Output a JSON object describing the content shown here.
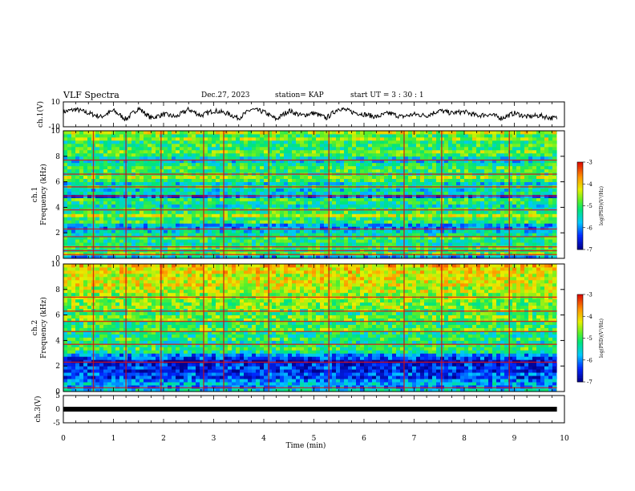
{
  "header": {
    "title": "VLF Spectra",
    "date": "Dec.27, 2023",
    "station": "station= KAP",
    "start": "start  UT =   3 : 30 : 1"
  },
  "chart_data": [
    {
      "type": "line",
      "panel": "ch1_waveform",
      "ylabel": "ch.1(V)",
      "ylim": [
        -10,
        10
      ],
      "yticks": [
        "10",
        "-10"
      ],
      "x_minutes": [
        0,
        0.25,
        0.5,
        0.75,
        1,
        1.25,
        1.5,
        1.75,
        2,
        2.25,
        2.5,
        2.75,
        3,
        3.25,
        3.5,
        3.75,
        4,
        4.25,
        4.5,
        4.75,
        5,
        5.25,
        5.5,
        5.75,
        6,
        6.25,
        6.5,
        6.75,
        7,
        7.25,
        7.5,
        7.75,
        8,
        8.25,
        8.5,
        8.75,
        9,
        9.25,
        9.5,
        9.75,
        9.85
      ],
      "values": [
        2,
        4,
        1,
        -2,
        3,
        -4,
        5,
        -3,
        0,
        -2,
        4,
        -1,
        3,
        1,
        -3,
        4,
        2,
        -4,
        3,
        -1,
        1,
        -3,
        5,
        2,
        0,
        -2,
        1,
        -2,
        0,
        -1,
        3,
        1,
        2,
        -1,
        0,
        -3,
        1,
        -2,
        -1,
        -3,
        -3
      ]
    },
    {
      "type": "heatmap",
      "panel": "ch1_spectrogram",
      "ylabel": "ch.1 Frequency (kHz)",
      "ylim": [
        0,
        10
      ],
      "yticks": [
        "0",
        "2",
        "4",
        "6",
        "8",
        "10"
      ],
      "colorbar": {
        "label": "log(PSD)(V²/Hz)",
        "range": [
          -7,
          -3
        ],
        "ticks": [
          "-3",
          "-4",
          "-5",
          "-6",
          "-7"
        ]
      },
      "band_levels_by_khz": [
        -5.8,
        -4.8,
        -5.2,
        -5.0,
        -5.3,
        -5.2,
        -5.0,
        -5.4,
        -5.6,
        -6.0,
        -5.8,
        -5.0,
        -5.1,
        -4.5,
        -5.0,
        -5.2,
        -5.5,
        -5.2,
        -5.0,
        -6.2,
        -5.4,
        -5.6,
        -5.2,
        -5.6,
        -5.0,
        -4.6,
        -5.2,
        -5.0,
        -5.0,
        -5.2,
        -5.6,
        -5.5,
        -5.0,
        -4.7,
        -5.1,
        -5.0,
        -5.2,
        -4.6,
        -5.0,
        -4.4
      ],
      "red_lines_khz": [
        0.3,
        0.6,
        0.9,
        1.7,
        2.3,
        3.8,
        4.9,
        5.6,
        6.6,
        7.7
      ],
      "spike_minutes": [
        0.6,
        1.25,
        1.95,
        2.8,
        3.2,
        4.1,
        5.3,
        6.8,
        7.55,
        8.9
      ]
    },
    {
      "type": "heatmap",
      "panel": "ch2_spectrogram",
      "ylabel": "ch.2 Frequency (kHz)",
      "ylim": [
        0,
        10
      ],
      "yticks": [
        "0",
        "2",
        "4",
        "6",
        "8",
        "10"
      ],
      "colorbar": {
        "label": "log(PSD)(V²/Hz)",
        "range": [
          -7,
          -3
        ],
        "ticks": [
          "-3",
          "-4",
          "-5",
          "-6",
          "-7"
        ]
      },
      "band_levels_by_khz": [
        -5.6,
        -6.0,
        -5.8,
        -6.0,
        -6.4,
        -6.2,
        -6.6,
        -6.4,
        -6.5,
        -6.8,
        -6.3,
        -6.0,
        -5.3,
        -5.0,
        -5.2,
        -5.4,
        -5.0,
        -5.3,
        -5.2,
        -4.8,
        -5.0,
        -5.1,
        -4.8,
        -4.7,
        -5.1,
        -4.9,
        -4.6,
        -4.8,
        -4.7,
        -4.5,
        -4.7,
        -4.4,
        -4.5,
        -4.3,
        -4.3,
        -4.2,
        -4.4,
        -4.1,
        -4.2,
        -4.0
      ],
      "red_lines_khz": [
        0.3,
        2.3,
        3.7,
        4.7,
        5.5,
        6.3,
        7.4
      ],
      "spike_minutes": [
        0.6,
        1.25,
        1.95,
        2.8,
        3.2,
        4.1,
        5.3,
        6.8,
        7.55,
        8.9
      ]
    },
    {
      "type": "line",
      "panel": "ch3_waveform",
      "ylabel": "ch.3(V)",
      "ylim": [
        -5,
        5
      ],
      "yticks": [
        "5",
        "0",
        "-5"
      ],
      "x_minutes": [
        0,
        9.85
      ],
      "values": [
        0,
        0
      ]
    }
  ],
  "xaxis": {
    "label": "Time (min)",
    "range": [
      0,
      10
    ],
    "ticks": [
      "0",
      "1",
      "2",
      "3",
      "4",
      "5",
      "6",
      "7",
      "8",
      "9",
      "10"
    ]
  }
}
